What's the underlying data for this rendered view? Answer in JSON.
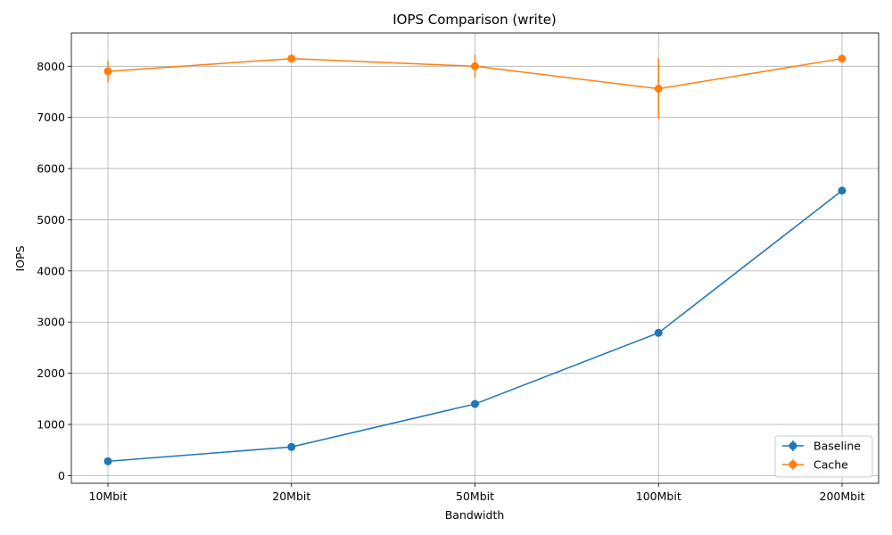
{
  "chart_data": {
    "type": "line",
    "title": "IOPS Comparison (write)",
    "xlabel": "Bandwidth",
    "ylabel": "IOPS",
    "categories": [
      "10Mbit",
      "20Mbit",
      "50Mbit",
      "100Mbit",
      "200Mbit"
    ],
    "ylim": [
      -150,
      8650
    ],
    "yticks": [
      0,
      1000,
      2000,
      3000,
      4000,
      5000,
      6000,
      7000,
      8000
    ],
    "grid": true,
    "legend_position": "lower-right",
    "series": [
      {
        "name": "Baseline",
        "color": "#1f77b4",
        "values": [
          280,
          560,
          1400,
          2790,
          5570
        ],
        "errors": [
          10,
          10,
          20,
          30,
          40
        ]
      },
      {
        "name": "Cache",
        "color": "#ff7f0e",
        "values": [
          7900,
          8150,
          8000,
          7560,
          8150
        ],
        "errors": [
          210,
          30,
          220,
          590,
          70
        ]
      }
    ]
  }
}
